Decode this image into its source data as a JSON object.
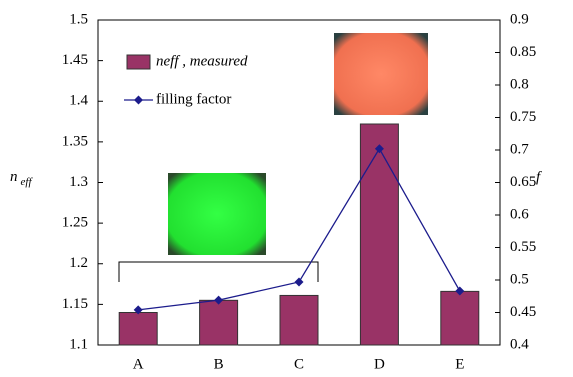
{
  "chart_data": {
    "type": "bar",
    "y_label": {
      "symbol": "n",
      "subscript": "eff"
    },
    "y2_label": "f",
    "categories": [
      "A",
      "B",
      "C",
      "D",
      "E"
    ],
    "series": [
      {
        "name": "neff , measured",
        "type": "bar",
        "color": "#993366",
        "values": [
          1.14,
          1.155,
          1.161,
          1.372,
          1.166
        ]
      },
      {
        "name": "filling factor",
        "type": "line",
        "axis": "y2",
        "color": "#1c1c8c",
        "values": [
          0.454,
          0.469,
          0.497,
          0.702,
          0.483
        ]
      }
    ],
    "ylim": [
      1.1,
      1.5
    ],
    "yticks": [
      1.1,
      1.15,
      1.2,
      1.25,
      1.3,
      1.35,
      1.4,
      1.45,
      1.5
    ],
    "y2lim": [
      0.4,
      0.9
    ],
    "y2ticks": [
      0.4,
      0.45,
      0.5,
      0.55,
      0.6,
      0.65,
      0.7,
      0.75,
      0.8,
      0.85,
      0.9
    ],
    "grid": false
  }
}
